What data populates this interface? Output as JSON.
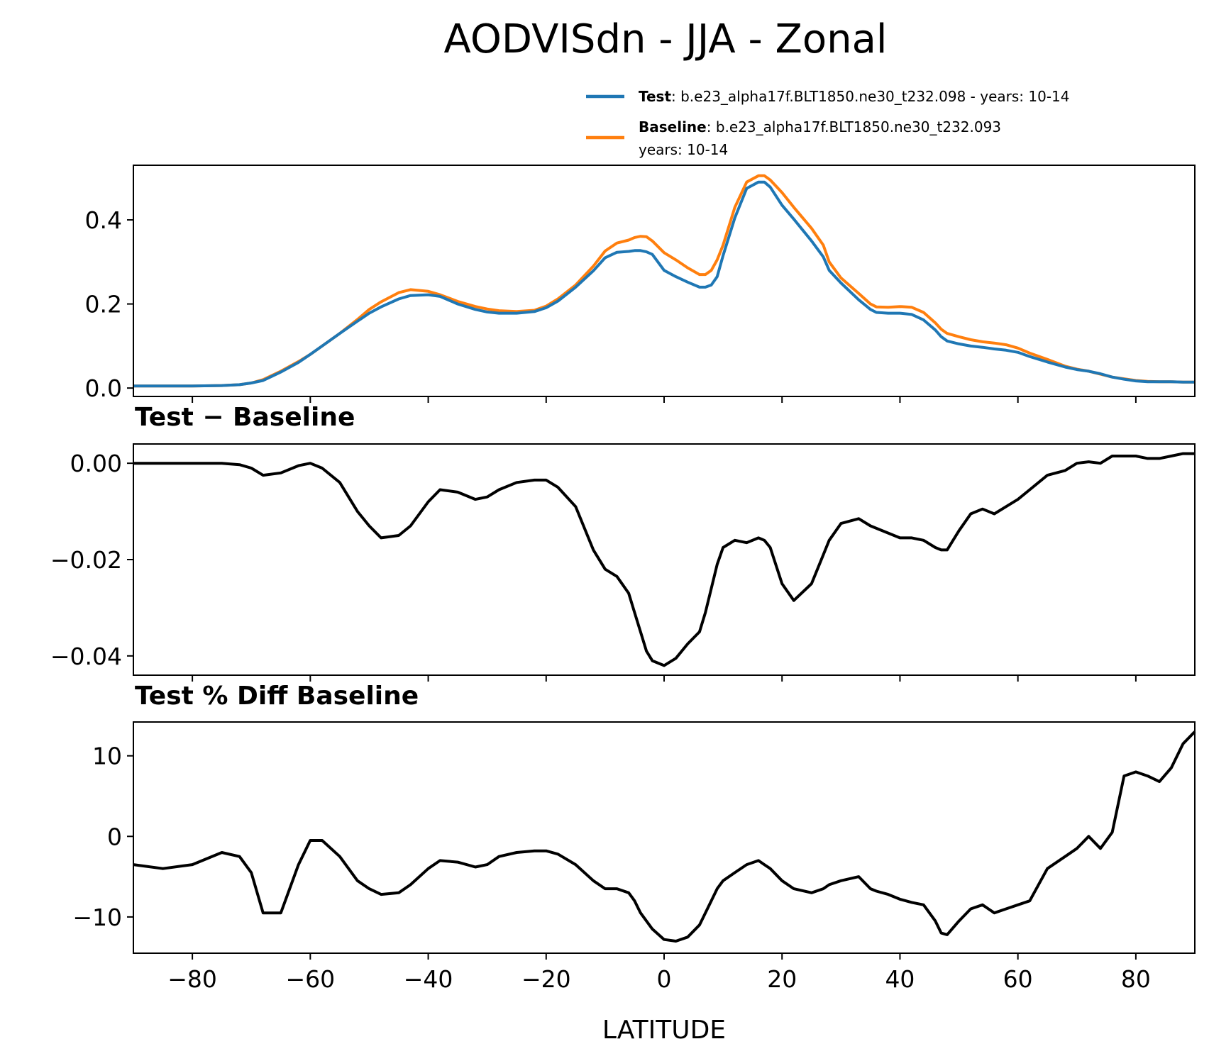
{
  "chart_data": {
    "title": "AODVISdn - JJA - Zonal",
    "xlabel": "LATITUDE",
    "xlim": [
      -90,
      90
    ],
    "xticks": [
      -80,
      -60,
      -40,
      -20,
      0,
      20,
      40,
      60,
      80
    ],
    "xtick_labels": [
      "−80",
      "−60",
      "−40",
      "−20",
      "0",
      "20",
      "40",
      "60",
      "80"
    ],
    "x": [
      -90,
      -85,
      -80,
      -75,
      -72,
      -70,
      -68,
      -65,
      -62,
      -60,
      -58,
      -55,
      -52,
      -50,
      -48,
      -45,
      -43,
      -40,
      -38,
      -35,
      -32,
      -30,
      -28,
      -25,
      -22,
      -20,
      -18,
      -15,
      -12,
      -10,
      -8,
      -6,
      -5,
      -4,
      -3,
      -2,
      0,
      2,
      4,
      6,
      7,
      8,
      9,
      10,
      12,
      14,
      16,
      17,
      18,
      20,
      22,
      25,
      27,
      28,
      30,
      33,
      35,
      36,
      38,
      40,
      42,
      44,
      46,
      47,
      48,
      50,
      52,
      54,
      56,
      58,
      60,
      62,
      65,
      68,
      70,
      72,
      74,
      76,
      78,
      80,
      82,
      84,
      86,
      88,
      90
    ],
    "panels": [
      {
        "type": "line",
        "ylim": [
          -0.02,
          0.53
        ],
        "yticks": [
          0.0,
          0.2,
          0.4
        ],
        "ytick_labels": [
          "0.0",
          "0.2",
          "0.4"
        ],
        "legend": {
          "location": "upper right above axes",
          "entries": [
            {
              "name": "Test",
              "label_bold": "Test",
              "label_rest": ": b.e23_alpha17f.BLT1850.ne30_t232.098 - years: 10-14",
              "color": "#1f77b4"
            },
            {
              "name": "Baseline",
              "label_bold": "Baseline",
              "label_rest": ": b.e23_alpha17f.BLT1850.ne30_t232.093",
              "label_line2": "years: 10-14",
              "color": "#ff7f0e"
            }
          ]
        },
        "series": [
          {
            "name": "Baseline",
            "color": "#ff7f0e",
            "values": [
              0.005,
              0.005,
              0.005,
              0.006,
              0.008,
              0.012,
              0.02,
              0.04,
              0.063,
              0.08,
              0.1,
              0.13,
              0.163,
              0.187,
              0.205,
              0.227,
              0.234,
              0.23,
              0.222,
              0.206,
              0.194,
              0.188,
              0.184,
              0.182,
              0.185,
              0.195,
              0.212,
              0.245,
              0.29,
              0.326,
              0.345,
              0.352,
              0.358,
              0.361,
              0.36,
              0.35,
              0.322,
              0.305,
              0.286,
              0.27,
              0.27,
              0.28,
              0.305,
              0.34,
              0.43,
              0.49,
              0.505,
              0.505,
              0.495,
              0.465,
              0.43,
              0.38,
              0.34,
              0.3,
              0.262,
              0.225,
              0.2,
              0.193,
              0.192,
              0.194,
              0.192,
              0.18,
              0.155,
              0.14,
              0.13,
              0.122,
              0.115,
              0.11,
              0.107,
              0.103,
              0.095,
              0.083,
              0.068,
              0.052,
              0.045,
              0.04,
              0.033,
              0.026,
              0.022,
              0.018,
              0.016,
              0.015,
              0.015,
              0.014,
              0.014
            ]
          },
          {
            "name": "Test",
            "color": "#1f77b4",
            "values": [
              0.005,
              0.005,
              0.005,
              0.006,
              0.008,
              0.012,
              0.018,
              0.038,
              0.061,
              0.08,
              0.1,
              0.13,
              0.159,
              0.178,
              0.193,
              0.212,
              0.22,
              0.222,
              0.218,
              0.2,
              0.187,
              0.181,
              0.178,
              0.178,
              0.182,
              0.191,
              0.207,
              0.24,
              0.279,
              0.31,
              0.323,
              0.325,
              0.327,
              0.327,
              0.324,
              0.318,
              0.28,
              0.265,
              0.252,
              0.24,
              0.24,
              0.245,
              0.265,
              0.315,
              0.405,
              0.475,
              0.49,
              0.49,
              0.478,
              0.435,
              0.402,
              0.35,
              0.312,
              0.28,
              0.25,
              0.21,
              0.187,
              0.18,
              0.178,
              0.178,
              0.175,
              0.162,
              0.138,
              0.122,
              0.112,
              0.105,
              0.1,
              0.097,
              0.093,
              0.09,
              0.085,
              0.075,
              0.062,
              0.05,
              0.044,
              0.04,
              0.034,
              0.026,
              0.021,
              0.017,
              0.015,
              0.015,
              0.015,
              0.014,
              0.014
            ]
          }
        ]
      },
      {
        "type": "line",
        "title": "Test − Baseline",
        "ylim": [
          -0.044,
          0.004
        ],
        "yticks": [
          0.0,
          -0.02,
          -0.04
        ],
        "ytick_labels": [
          "0.00",
          "−0.02",
          "−0.04"
        ],
        "series": [
          {
            "name": "Test - Baseline",
            "color": "#000000",
            "values": [
              0.0,
              0.0,
              0.0,
              0.0,
              -0.0003,
              -0.001,
              -0.0025,
              -0.002,
              -0.0005,
              0.0,
              -0.001,
              -0.004,
              -0.01,
              -0.013,
              -0.0155,
              -0.015,
              -0.013,
              -0.008,
              -0.0055,
              -0.006,
              -0.0075,
              -0.007,
              -0.0055,
              -0.004,
              -0.0035,
              -0.0035,
              -0.005,
              -0.009,
              -0.018,
              -0.022,
              -0.0235,
              -0.027,
              -0.031,
              -0.035,
              -0.039,
              -0.041,
              -0.042,
              -0.0405,
              -0.0375,
              -0.035,
              -0.031,
              -0.026,
              -0.021,
              -0.0175,
              -0.016,
              -0.0165,
              -0.0155,
              -0.016,
              -0.0175,
              -0.025,
              -0.0285,
              -0.025,
              -0.019,
              -0.016,
              -0.0125,
              -0.0115,
              -0.013,
              -0.0135,
              -0.0145,
              -0.0155,
              -0.0155,
              -0.016,
              -0.0175,
              -0.018,
              -0.018,
              -0.014,
              -0.0105,
              -0.0095,
              -0.0105,
              -0.009,
              -0.0075,
              -0.0055,
              -0.0025,
              -0.0015,
              0.0,
              0.0003,
              0.0,
              0.0015,
              0.0015,
              0.0015,
              0.001,
              0.001,
              0.0015,
              0.002,
              0.002
            ]
          }
        ]
      },
      {
        "type": "line",
        "title": "Test % Diff Baseline",
        "ylim": [
          -14.5,
          14.2
        ],
        "yticks": [
          10,
          0,
          -10
        ],
        "ytick_labels": [
          "10",
          "0",
          "−10"
        ],
        "series": [
          {
            "name": "Test % Diff Baseline",
            "color": "#000000",
            "values": [
              -3.5,
              -4.0,
              -3.5,
              -2.0,
              -2.5,
              -4.5,
              -9.5,
              -9.5,
              -3.5,
              -0.5,
              -0.5,
              -2.5,
              -5.5,
              -6.5,
              -7.2,
              -7.0,
              -6.0,
              -4.0,
              -3.0,
              -3.2,
              -3.8,
              -3.5,
              -2.5,
              -2.0,
              -1.8,
              -1.8,
              -2.2,
              -3.5,
              -5.5,
              -6.5,
              -6.5,
              -7.0,
              -8.0,
              -9.5,
              -10.5,
              -11.5,
              -12.8,
              -13.0,
              -12.5,
              -11.0,
              -9.5,
              -8.0,
              -6.5,
              -5.5,
              -4.5,
              -3.5,
              -3.0,
              -3.5,
              -4.0,
              -5.5,
              -6.5,
              -7.0,
              -6.5,
              -6.0,
              -5.5,
              -5.0,
              -6.5,
              -6.8,
              -7.2,
              -7.8,
              -8.2,
              -8.5,
              -10.5,
              -12.0,
              -12.2,
              -10.5,
              -9.0,
              -8.5,
              -9.5,
              -9.0,
              -8.5,
              -8.0,
              -4.0,
              -2.5,
              -1.5,
              0.0,
              -1.5,
              0.5,
              7.5,
              8.0,
              7.5,
              6.8,
              8.5,
              11.5,
              13.0
            ]
          }
        ]
      }
    ]
  }
}
